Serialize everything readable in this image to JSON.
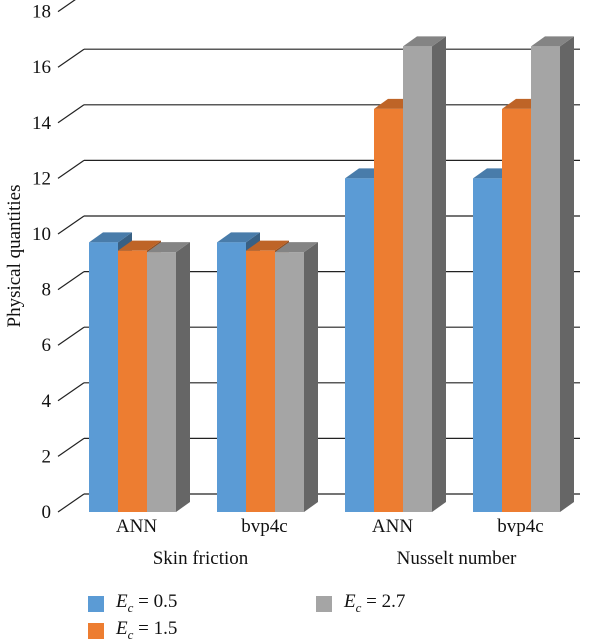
{
  "chart_data": {
    "type": "bar",
    "ylabel": "Physical quantities",
    "ylim": [
      0,
      18
    ],
    "yticks": [
      0,
      2,
      4,
      6,
      8,
      10,
      12,
      14,
      16,
      18
    ],
    "grid": true,
    "legend_position": "bottom",
    "categories": [
      {
        "label": "ANN",
        "group": "Skin friction"
      },
      {
        "label": "bvp4c",
        "group": "Skin friction"
      },
      {
        "label": "ANN",
        "group": "Nusselt number"
      },
      {
        "label": "bvp4c",
        "group": "Nusselt number"
      }
    ],
    "groups": [
      "Skin friction",
      "Nusselt number"
    ],
    "series": [
      {
        "symbol": "E",
        "subscript": "c",
        "value_text": " = 0.5",
        "color": "#5b9bd5",
        "values": [
          9.7,
          9.7,
          12.0,
          12.0
        ]
      },
      {
        "symbol": "E",
        "subscript": "c",
        "value_text": " = 1.5",
        "color": "#ed7d31",
        "values": [
          9.4,
          9.4,
          14.5,
          14.5
        ]
      },
      {
        "symbol": "E",
        "subscript": "c",
        "value_text": " = 2.7",
        "color": "#a5a5a5",
        "values": [
          9.35,
          9.35,
          16.75,
          16.75
        ]
      }
    ]
  }
}
